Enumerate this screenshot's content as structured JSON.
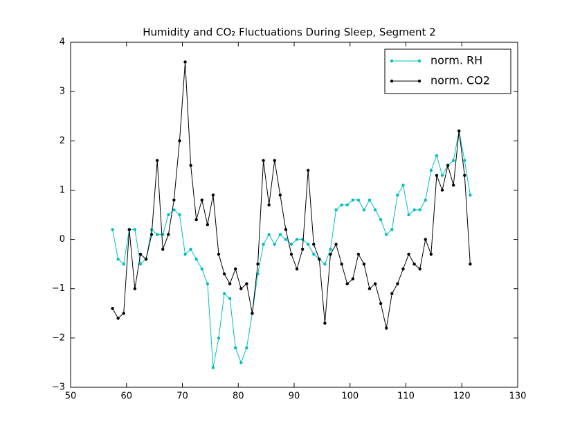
{
  "chart_data": {
    "type": "line",
    "title": "Humidity and CO₂ Fluctuations During Sleep, Segment 2",
    "x": [
      57.5,
      58.5,
      59.5,
      60.5,
      61.5,
      62.5,
      63.5,
      64.5,
      65.5,
      66.5,
      67.5,
      68.5,
      69.5,
      70.5,
      71.5,
      72.5,
      73.5,
      74.5,
      75.5,
      76.5,
      77.5,
      78.5,
      79.5,
      80.5,
      81.5,
      82.5,
      83.5,
      84.5,
      85.5,
      86.5,
      87.5,
      88.5,
      89.5,
      90.5,
      91.5,
      92.5,
      93.5,
      94.5,
      95.5,
      96.5,
      97.5,
      98.5,
      99.5,
      100.5,
      101.5,
      102.5,
      103.5,
      104.5,
      105.5,
      106.5,
      107.5,
      108.5,
      109.5,
      110.5,
      111.5,
      112.5,
      113.5,
      114.5,
      115.5,
      116.5,
      117.5,
      118.5,
      119.5,
      120.5,
      121.5
    ],
    "series": [
      {
        "name": "norm. RH",
        "color": "#00bfbf",
        "values": [
          0.2,
          -0.4,
          -0.5,
          0.2,
          0.2,
          -0.5,
          -0.4,
          0.2,
          0.1,
          0.1,
          0.5,
          0.6,
          0.5,
          -0.3,
          -0.2,
          -0.4,
          -0.6,
          -0.9,
          -2.6,
          -2.0,
          -1.1,
          -1.2,
          -2.2,
          -2.5,
          -2.2,
          -1.5,
          -0.7,
          -0.1,
          0.1,
          -0.1,
          0.1,
          0.0,
          -0.1,
          0.0,
          0.0,
          -0.1,
          -0.3,
          -0.4,
          -0.5,
          -0.2,
          0.6,
          0.7,
          0.7,
          0.8,
          0.8,
          0.6,
          0.8,
          0.6,
          0.4,
          0.1,
          0.2,
          0.9,
          1.1,
          0.5,
          0.6,
          0.6,
          0.8,
          1.4,
          1.7,
          1.3,
          1.5,
          1.6,
          2.2,
          1.6,
          0.9
        ]
      },
      {
        "name": "norm. CO2",
        "color": "#000000",
        "values": [
          -1.4,
          -1.6,
          -1.5,
          0.2,
          -1.0,
          -0.3,
          -0.4,
          0.1,
          1.6,
          -0.2,
          0.1,
          0.8,
          2.0,
          3.6,
          1.5,
          0.4,
          0.8,
          0.3,
          0.9,
          -0.3,
          -0.7,
          -0.9,
          -0.6,
          -1.0,
          -0.9,
          -1.5,
          -0.5,
          1.6,
          0.7,
          1.6,
          0.9,
          0.2,
          -0.3,
          -0.6,
          -0.2,
          1.4,
          -0.1,
          -0.4,
          -1.7,
          -0.3,
          -0.1,
          -0.5,
          -0.9,
          -0.8,
          -0.3,
          -0.5,
          -1.0,
          -0.9,
          -1.3,
          -1.8,
          -1.1,
          -0.9,
          -0.6,
          -0.3,
          -0.5,
          -0.6,
          0.0,
          -0.3,
          1.3,
          1.0,
          1.5,
          1.1,
          2.2,
          1.3,
          -0.5
        ]
      }
    ],
    "xlim": [
      50,
      130
    ],
    "xticks": [
      50,
      60,
      70,
      80,
      90,
      100,
      110,
      120,
      130
    ],
    "ylim": [
      -3,
      4
    ],
    "yticks": [
      {
        "value": -3,
        "label": "−3"
      },
      {
        "value": -2,
        "label": "−2"
      },
      {
        "value": -1,
        "label": "−1"
      },
      0,
      1,
      2,
      3,
      4
    ],
    "legend": "upper right"
  }
}
